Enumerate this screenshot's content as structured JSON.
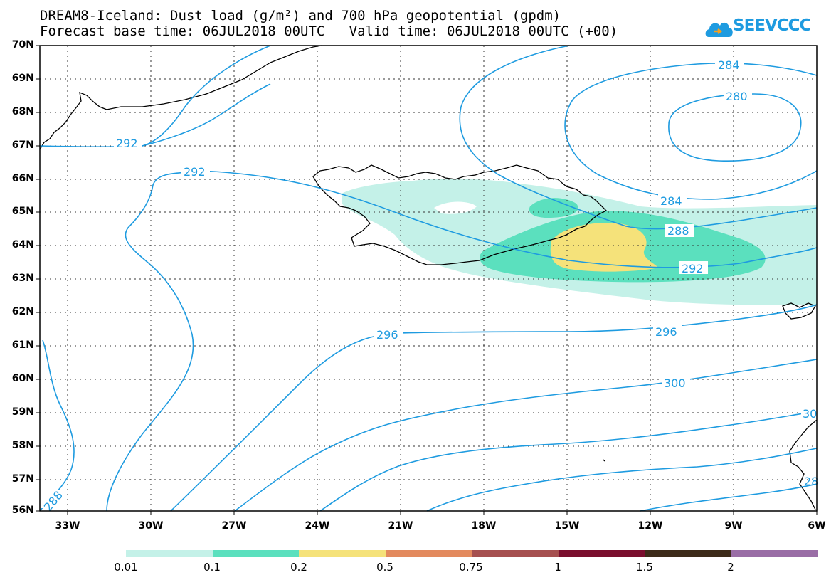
{
  "title_line1": "DREAM8-Iceland: Dust load (g/m²) and 700 hPa geopotential (gpdm)",
  "title_line2": "Forecast base time: 06JUL2018 00UTC   Valid time: 06JUL2018 00UTC (+00)",
  "logo_text": "SEEVCCC",
  "colors": {
    "contour": "#1e9be0",
    "coast": "#000000",
    "grid": "#333333",
    "dust_0_01": "#c4f1e8",
    "dust_0_1": "#5be0be",
    "dust_0_2": "#f5e27a"
  },
  "lat_labels": [
    "70N",
    "69N",
    "68N",
    "67N",
    "66N",
    "65N",
    "64N",
    "63N",
    "62N",
    "61N",
    "60N",
    "59N",
    "58N",
    "57N",
    "56N"
  ],
  "lon_labels": [
    "33W",
    "30W",
    "27W",
    "24W",
    "21W",
    "18W",
    "15W",
    "12W",
    "9W",
    "6W"
  ],
  "contour_labels": [
    "284",
    "280",
    "292",
    "292",
    "284",
    "288",
    "292",
    "296",
    "296",
    "300",
    "30",
    "288",
    "28"
  ],
  "colorbar": {
    "colors": [
      "#c4f1e8",
      "#5be0be",
      "#f5e27a",
      "#e38a5e",
      "#a65050",
      "#7a0e2e",
      "#3d2b1a",
      "#9a6ea6"
    ],
    "labels": [
      "0.01",
      "0.1",
      "0.2",
      "0.5",
      "0.75",
      "1",
      "1.5",
      "2"
    ]
  }
}
